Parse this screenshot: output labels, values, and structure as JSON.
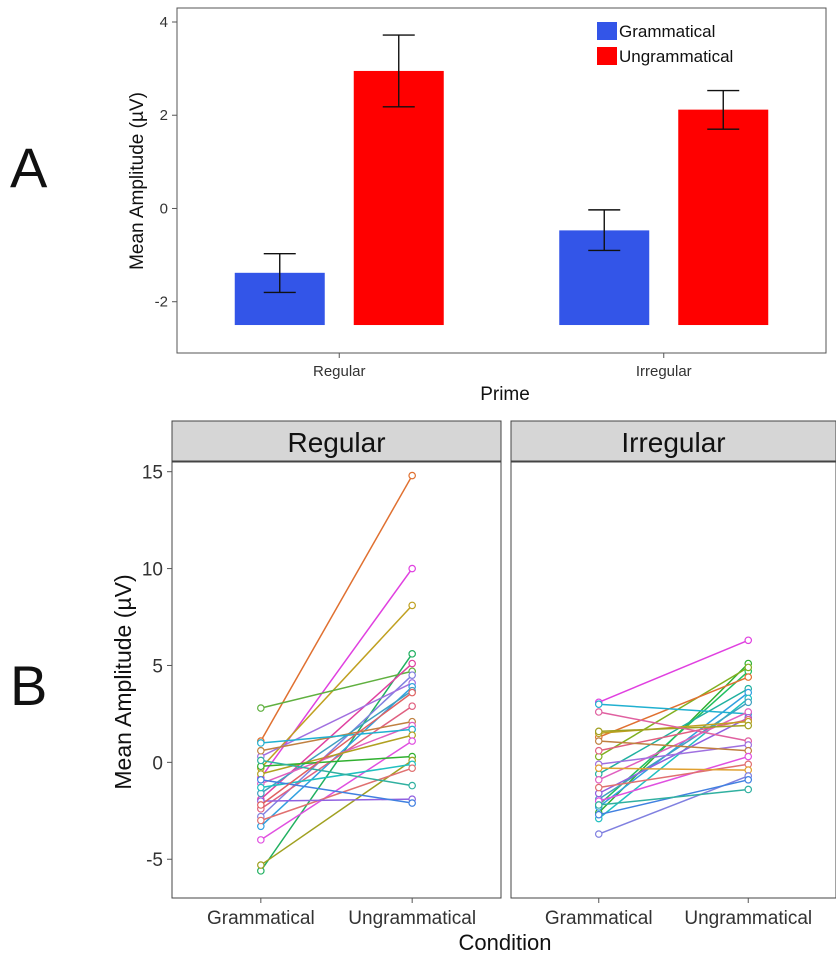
{
  "panels": {
    "a_letter": "A",
    "b_letter": "B"
  },
  "chart_data": [
    {
      "type": "bar",
      "panel": "A",
      "title": "",
      "xlabel": "Prime",
      "ylabel": "Mean Amplitude (µV)",
      "categories": [
        "Regular",
        "Irregular"
      ],
      "ylim": [
        -3.1,
        4.3
      ],
      "yticks": [
        -2,
        0,
        2,
        4
      ],
      "ytick_labels": [
        "-2",
        "0",
        "2",
        "4"
      ],
      "bar_base": -2.5,
      "legend_position": "top-right",
      "grid": false,
      "series": [
        {
          "name": "Grammatical",
          "color": "#3355e8",
          "values": [
            -1.38,
            -0.47
          ],
          "error_low": [
            -1.8,
            -0.9
          ],
          "error_high": [
            -0.97,
            -0.03
          ]
        },
        {
          "name": "Ungrammatical",
          "color": "#ff0000",
          "values": [
            2.95,
            2.12
          ],
          "error_low": [
            2.18,
            1.7
          ],
          "error_high": [
            3.72,
            2.53
          ]
        }
      ]
    },
    {
      "type": "line",
      "panel": "B",
      "xlabel": "Condition",
      "ylabel": "Mean Amplitude (µV)",
      "x": [
        "Grammatical",
        "Ungrammatical"
      ],
      "ylim": [
        -7,
        15.5
      ],
      "yticks": [
        -5,
        0,
        5,
        10,
        15
      ],
      "ytick_labels": [
        "-5",
        "0",
        "5",
        "10",
        "15"
      ],
      "grid": false,
      "facets": [
        {
          "label": "Regular",
          "pairs": [
            [
              1.1,
              14.8
            ],
            [
              -0.8,
              10.0
            ],
            [
              -0.3,
              8.1
            ],
            [
              -5.6,
              5.6
            ],
            [
              2.8,
              4.7
            ],
            [
              -1.9,
              5.1
            ],
            [
              -2.8,
              4.5
            ],
            [
              0.3,
              4.1
            ],
            [
              -3.3,
              3.9
            ],
            [
              -1.6,
              3.7
            ],
            [
              -2.4,
              2.9
            ],
            [
              0.6,
              2.1
            ],
            [
              -1.1,
              1.9
            ],
            [
              1.0,
              1.7
            ],
            [
              -0.6,
              1.4
            ],
            [
              -4.0,
              1.1
            ],
            [
              -0.2,
              0.3
            ],
            [
              -5.3,
              0.1
            ],
            [
              -1.3,
              -0.1
            ],
            [
              -3.0,
              -0.3
            ],
            [
              0.1,
              -1.2
            ],
            [
              -2.0,
              -1.9
            ],
            [
              -0.9,
              -2.1
            ],
            [
              -2.2,
              3.6
            ]
          ],
          "colors": [
            "#e07030",
            "#e040e0",
            "#c0a020",
            "#20b060",
            "#60b040",
            "#e040a0",
            "#8080e0",
            "#a070e0",
            "#30a0e0",
            "#40a0c0",
            "#e06080",
            "#c08040",
            "#e060c0",
            "#20b0d0",
            "#b0a020",
            "#e050e0",
            "#30b030",
            "#a0a020",
            "#20c0c0",
            "#e07070",
            "#30b0a0",
            "#9060e0",
            "#4080e0",
            "#e06060"
          ]
        },
        {
          "label": "Irregular",
          "pairs": [
            [
              3.1,
              6.3
            ],
            [
              -2.6,
              5.1
            ],
            [
              -2.2,
              4.7
            ],
            [
              0.3,
              4.9
            ],
            [
              1.3,
              4.4
            ],
            [
              -0.6,
              3.8
            ],
            [
              -2.3,
              3.6
            ],
            [
              -2.9,
              3.3
            ],
            [
              -1.9,
              3.1
            ],
            [
              3.0,
              2.5
            ],
            [
              -0.9,
              2.6
            ],
            [
              -1.6,
              2.3
            ],
            [
              0.6,
              2.2
            ],
            [
              1.5,
              2.1
            ],
            [
              1.6,
              1.9
            ],
            [
              2.6,
              1.1
            ],
            [
              -0.1,
              0.9
            ],
            [
              1.1,
              0.6
            ],
            [
              -2.0,
              0.3
            ],
            [
              -1.3,
              -0.1
            ],
            [
              -0.3,
              -0.4
            ],
            [
              -3.7,
              -0.7
            ],
            [
              -2.7,
              -0.9
            ],
            [
              -2.2,
              -1.4
            ]
          ],
          "colors": [
            "#e040e0",
            "#30b030",
            "#20c060",
            "#80b020",
            "#e07030",
            "#20b0a0",
            "#30a0e0",
            "#20c0c0",
            "#40a0c0",
            "#20b0d0",
            "#e060c0",
            "#9060e0",
            "#e06080",
            "#c0a020",
            "#a0a020",
            "#e060a0",
            "#a070e0",
            "#c08040",
            "#e050e0",
            "#e07070",
            "#e0a030",
            "#8080e0",
            "#4080e0",
            "#30b0a0"
          ]
        }
      ]
    }
  ]
}
